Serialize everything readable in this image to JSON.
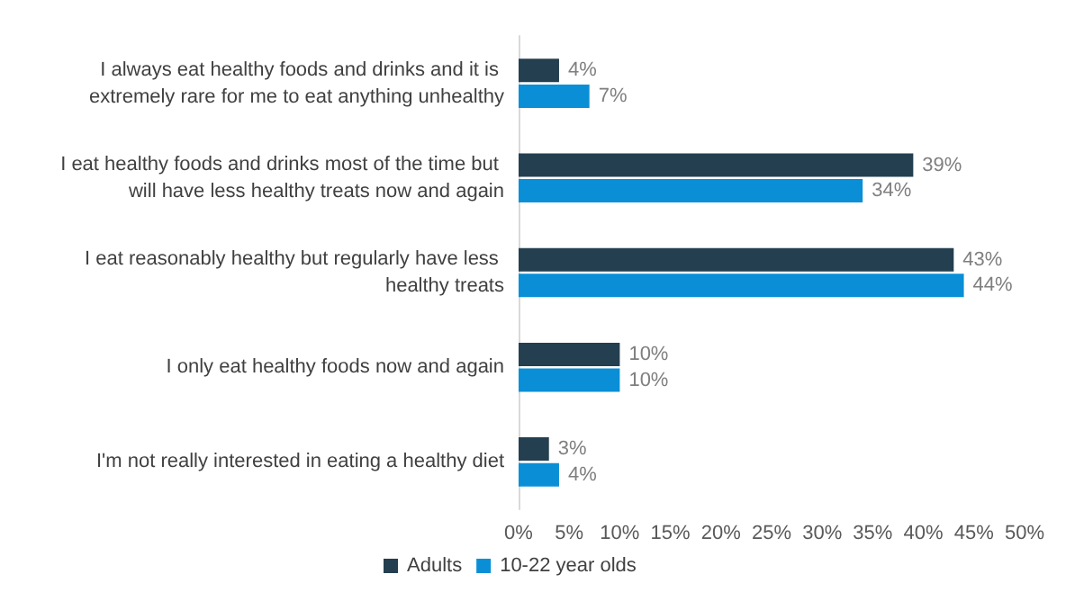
{
  "chart_data": {
    "type": "bar",
    "orientation": "horizontal",
    "categories": [
      "I always eat healthy foods and drinks and it is extremely rare for me to eat anything unhealthy",
      "I eat healthy foods and drinks most of the time but will have less healthy treats now and again",
      "I eat reasonably healthy but regularly have less healthy treats",
      "I only eat healthy foods now and again",
      "I'm not really interested in eating a healthy diet"
    ],
    "series": [
      {
        "name": "Adults",
        "color": "#243f4f",
        "values": [
          4,
          39,
          43,
          10,
          3
        ],
        "value_labels": [
          "4%",
          "39%",
          "43%",
          "10%",
          "3%"
        ]
      },
      {
        "name": "10-22 year olds",
        "color": "#0a8fd6",
        "values": [
          7,
          34,
          44,
          10,
          4
        ],
        "value_labels": [
          "7%",
          "34%",
          "44%",
          "10%",
          "4%"
        ]
      }
    ],
    "xlim": [
      0,
      50
    ],
    "xticks": [
      {
        "value": 0,
        "label": "0%"
      },
      {
        "value": 5,
        "label": "5%"
      },
      {
        "value": 10,
        "label": "10%"
      },
      {
        "value": 15,
        "label": "15%"
      },
      {
        "value": 20,
        "label": "20%"
      },
      {
        "value": 25,
        "label": "25%"
      },
      {
        "value": 30,
        "label": "30%"
      },
      {
        "value": 35,
        "label": "35%"
      },
      {
        "value": 40,
        "label": "40%"
      },
      {
        "value": 45,
        "label": "45%"
      },
      {
        "value": 50,
        "label": "50%"
      }
    ],
    "grid": false,
    "legend": "bottom"
  }
}
